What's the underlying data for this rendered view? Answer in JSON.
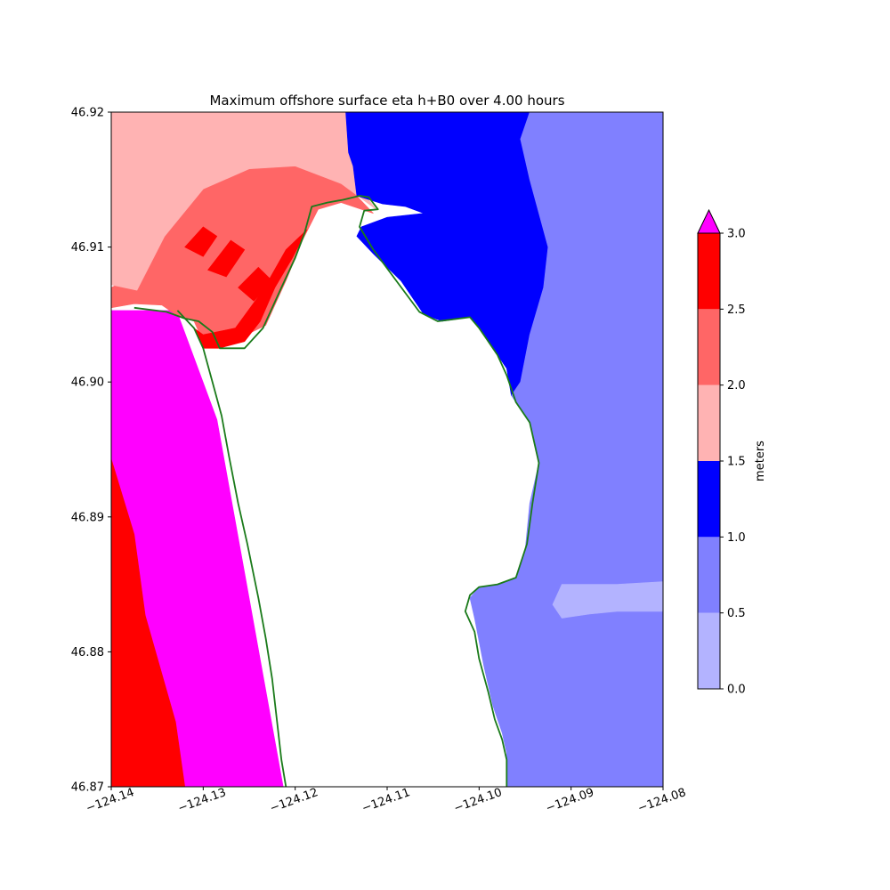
{
  "chart_data": {
    "type": "heatmap",
    "title": "Maximum offshore surface eta h+B0 over 4.00 hours",
    "xlabel": "",
    "ylabel": "",
    "xlim": [
      -124.14,
      -124.08
    ],
    "ylim": [
      46.87,
      46.92
    ],
    "x_ticks": [
      "−124.14",
      "−124.13",
      "−124.12",
      "−124.11",
      "−124.10",
      "−124.09",
      "−124.08"
    ],
    "x_tick_values": [
      -124.14,
      -124.13,
      -124.12,
      -124.11,
      -124.1,
      -124.09,
      -124.08
    ],
    "y_ticks": [
      "46.87",
      "46.88",
      "46.89",
      "46.90",
      "46.91",
      "46.92"
    ],
    "y_tick_values": [
      46.87,
      46.88,
      46.89,
      46.9,
      46.91,
      46.92
    ],
    "grid": false,
    "coastline_color": "#1a7a1a",
    "colorbar": {
      "label": "meters",
      "extend": "max",
      "over_color": "#ff00ff",
      "bounds": [
        0.0,
        0.5,
        1.0,
        1.5,
        2.0,
        2.5,
        3.0
      ],
      "tick_labels": [
        "0.0",
        "0.5",
        "1.0",
        "1.5",
        "2.0",
        "2.5",
        "3.0"
      ],
      "colors": [
        "#b3b3ff",
        "#8080ff",
        "#0000ff",
        "#ffb3b3",
        "#ff6666",
        "#ff0000"
      ]
    },
    "regions": [
      {
        "name": "over-3.0",
        "color": "#ff00ff",
        "polygon": [
          [
            -124.14,
            46.9053
          ],
          [
            -124.1329,
            46.9053
          ],
          [
            -124.1285,
            46.8972
          ],
          [
            -124.1213,
            46.87
          ],
          [
            -124.132,
            46.87
          ],
          [
            -124.133,
            46.8748
          ],
          [
            -124.1363,
            46.8827
          ],
          [
            -124.1375,
            46.8887
          ],
          [
            -124.14,
            46.8943
          ]
        ]
      },
      {
        "name": "2.5-3.0-south",
        "color": "#ff0000",
        "polygon": [
          [
            -124.14,
            46.8943
          ],
          [
            -124.1375,
            46.8887
          ],
          [
            -124.1363,
            46.8827
          ],
          [
            -124.133,
            46.8748
          ],
          [
            -124.132,
            46.87
          ],
          [
            -124.14,
            46.87
          ]
        ]
      },
      {
        "name": "2.0-2.5-north",
        "color": "#ff6666",
        "polygon": [
          [
            -124.1375,
            46.9058
          ],
          [
            -124.1345,
            46.9057
          ],
          [
            -124.133,
            46.905
          ],
          [
            -124.131,
            46.9045
          ],
          [
            -124.13,
            46.903
          ],
          [
            -124.1283,
            46.9025
          ],
          [
            -124.1232,
            46.9042
          ],
          [
            -124.121,
            46.9075
          ],
          [
            -124.1192,
            46.9105
          ],
          [
            -124.1175,
            46.9128
          ],
          [
            -124.115,
            46.9133
          ],
          [
            -124.1115,
            46.9125
          ],
          [
            -124.115,
            46.915
          ],
          [
            -124.12,
            46.9162
          ],
          [
            -124.125,
            46.916
          ],
          [
            -124.13,
            46.9145
          ],
          [
            -124.134,
            46.9115
          ],
          [
            -124.137,
            46.908
          ],
          [
            -124.14,
            46.907
          ],
          [
            -124.14,
            46.9055
          ]
        ]
      },
      {
        "name": "1.5-2.0-north",
        "color": "#ffb3b3",
        "polygon": [
          [
            -124.14,
            46.9072
          ],
          [
            -124.1372,
            46.9068
          ],
          [
            -124.1342,
            46.9108
          ],
          [
            -124.13,
            46.9143
          ],
          [
            -124.125,
            46.9158
          ],
          [
            -124.12,
            46.916
          ],
          [
            -124.115,
            46.9147
          ],
          [
            -124.1112,
            46.9128
          ],
          [
            -124.112,
            46.9135
          ],
          [
            -124.1133,
            46.9138
          ],
          [
            -124.1137,
            46.916
          ],
          [
            -124.1142,
            46.917
          ],
          [
            -124.1145,
            46.92
          ],
          [
            -124.14,
            46.92
          ]
        ]
      },
      {
        "name": "2.5-3.0-shore",
        "color": "#ff0000",
        "polygon": [
          [
            -124.131,
            46.904
          ],
          [
            -124.13,
            46.9025
          ],
          [
            -124.1283,
            46.9025
          ],
          [
            -124.1255,
            46.903
          ],
          [
            -124.1238,
            46.9045
          ],
          [
            -124.1222,
            46.907
          ],
          [
            -124.1203,
            46.9092
          ],
          [
            -124.1187,
            46.9113
          ],
          [
            -124.121,
            46.9098
          ],
          [
            -124.1235,
            46.9068
          ],
          [
            -124.1265,
            46.904
          ],
          [
            -124.13,
            46.9035
          ]
        ]
      },
      {
        "name": "2.5-3.0-spot-1",
        "color": "#ff0000",
        "polygon": [
          [
            -124.132,
            46.91
          ],
          [
            -124.13,
            46.9115
          ],
          [
            -124.1285,
            46.9108
          ],
          [
            -124.13,
            46.9093
          ]
        ]
      },
      {
        "name": "2.5-3.0-spot-2",
        "color": "#ff0000",
        "polygon": [
          [
            -124.1295,
            46.9083
          ],
          [
            -124.127,
            46.9105
          ],
          [
            -124.1255,
            46.9098
          ],
          [
            -124.1275,
            46.9078
          ]
        ]
      },
      {
        "name": "2.5-3.0-spot-3",
        "color": "#ff0000",
        "polygon": [
          [
            -124.1262,
            46.907
          ],
          [
            -124.124,
            46.9085
          ],
          [
            -124.1225,
            46.9075
          ],
          [
            -124.1245,
            46.906
          ]
        ]
      },
      {
        "name": "1.0-1.5-bay",
        "color": "#0000ff",
        "polygon": [
          [
            -124.1133,
            46.9138
          ],
          [
            -124.1137,
            46.916
          ],
          [
            -124.1142,
            46.917
          ],
          [
            -124.1145,
            46.92
          ],
          [
            -124.1108,
            46.92
          ],
          [
            -124.0945,
            46.92
          ],
          [
            -124.0955,
            46.918
          ],
          [
            -124.0945,
            46.915
          ],
          [
            -124.0935,
            46.9125
          ],
          [
            -124.0925,
            46.91
          ],
          [
            -124.093,
            46.907
          ],
          [
            -124.0945,
            46.9035
          ],
          [
            -124.0955,
            46.9
          ],
          [
            -124.0965,
            46.899
          ],
          [
            -124.097,
            46.901
          ],
          [
            -124.098,
            46.902
          ],
          [
            -124.099,
            46.903
          ],
          [
            -124.1,
            46.904
          ],
          [
            -124.101,
            46.9048
          ],
          [
            -124.104,
            46.9045
          ],
          [
            -124.106,
            46.905
          ],
          [
            -124.1085,
            46.9075
          ],
          [
            -124.1115,
            46.9095
          ],
          [
            -124.1133,
            46.9108
          ],
          [
            -124.1128,
            46.9115
          ],
          [
            -124.11,
            46.9122
          ],
          [
            -124.106,
            46.9125
          ],
          [
            -124.108,
            46.913
          ],
          [
            -124.1105,
            46.9132
          ]
        ]
      },
      {
        "name": "0.5-1.0-east",
        "color": "#8080ff",
        "polygon": [
          [
            -124.0945,
            46.92
          ],
          [
            -124.08,
            46.92
          ],
          [
            -124.08,
            46.87
          ],
          [
            -124.097,
            46.87
          ],
          [
            -124.097,
            46.8725
          ],
          [
            -124.0975,
            46.874
          ],
          [
            -124.0985,
            46.876
          ],
          [
            -124.0995,
            46.879
          ],
          [
            -124.1005,
            46.8825
          ],
          [
            -124.101,
            46.884
          ],
          [
            -124.1,
            46.8848
          ],
          [
            -124.098,
            46.885
          ],
          [
            -124.096,
            46.8855
          ],
          [
            -124.095,
            46.8875
          ],
          [
            -124.0945,
            46.891
          ],
          [
            -124.0935,
            46.894
          ],
          [
            -124.0945,
            46.897
          ],
          [
            -124.096,
            46.8985
          ],
          [
            -124.0965,
            46.899
          ],
          [
            -124.0955,
            46.9
          ],
          [
            -124.0945,
            46.9035
          ],
          [
            -124.093,
            46.907
          ],
          [
            -124.0925,
            46.91
          ],
          [
            -124.0935,
            46.9125
          ],
          [
            -124.0945,
            46.915
          ],
          [
            -124.0955,
            46.918
          ]
        ]
      },
      {
        "name": "0.0-0.5-band",
        "color": "#b3b3ff",
        "polygon": [
          [
            -124.092,
            46.8835
          ],
          [
            -124.091,
            46.885
          ],
          [
            -124.088,
            46.885
          ],
          [
            -124.085,
            46.885
          ],
          [
            -124.08,
            46.8852
          ],
          [
            -124.08,
            46.883
          ],
          [
            -124.085,
            46.883
          ],
          [
            -124.088,
            46.8828
          ],
          [
            -124.091,
            46.8825
          ]
        ]
      }
    ],
    "coastline": [
      [
        [
          -124.1375,
          46.9055
        ],
        [
          -124.134,
          46.9052
        ],
        [
          -124.132,
          46.9047
        ],
        [
          -124.1305,
          46.9045
        ],
        [
          -124.129,
          46.9037
        ],
        [
          -124.1282,
          46.9025
        ],
        [
          -124.1255,
          46.9025
        ],
        [
          -124.1235,
          46.904
        ],
        [
          -124.1215,
          46.907
        ],
        [
          -124.12,
          46.9092
        ],
        [
          -124.119,
          46.911
        ],
        [
          -124.1182,
          46.913
        ],
        [
          -124.1165,
          46.9133
        ],
        [
          -124.1148,
          46.9135
        ],
        [
          -124.113,
          46.9138
        ],
        [
          -124.112,
          46.9137
        ],
        [
          -124.111,
          46.9128
        ],
        [
          -124.1125,
          46.9127
        ],
        [
          -124.113,
          46.9115
        ],
        [
          -124.1115,
          46.9098
        ],
        [
          -124.109,
          46.9075
        ],
        [
          -124.1065,
          46.9052
        ],
        [
          -124.1045,
          46.9045
        ],
        [
          -124.101,
          46.9048
        ],
        [
          -124.1,
          46.904
        ],
        [
          -124.099,
          46.903
        ],
        [
          -124.098,
          46.902
        ],
        [
          -124.097,
          46.9005
        ],
        [
          -124.0965,
          46.8995
        ],
        [
          -124.096,
          46.8985
        ],
        [
          -124.0945,
          46.897
        ],
        [
          -124.0935,
          46.894
        ],
        [
          -124.0942,
          46.891
        ],
        [
          -124.0948,
          46.888
        ],
        [
          -124.096,
          46.8855
        ],
        [
          -124.098,
          46.885
        ],
        [
          -124.1,
          46.8848
        ],
        [
          -124.101,
          46.8842
        ],
        [
          -124.1015,
          46.883
        ],
        [
          -124.1005,
          46.8815
        ],
        [
          -124.1,
          46.8795
        ],
        [
          -124.099,
          46.877
        ],
        [
          -124.0983,
          46.875
        ],
        [
          -124.0975,
          46.8735
        ],
        [
          -124.097,
          46.872
        ],
        [
          -124.097,
          46.87
        ]
      ],
      [
        [
          -124.1328,
          46.9053
        ],
        [
          -124.131,
          46.904
        ],
        [
          -124.13,
          46.9025
        ],
        [
          -124.129,
          46.9
        ],
        [
          -124.128,
          46.8975
        ],
        [
          -124.1272,
          46.8945
        ],
        [
          -124.1262,
          46.891
        ],
        [
          -124.1252,
          46.888
        ],
        [
          -124.124,
          46.884
        ],
        [
          -124.1232,
          46.881
        ],
        [
          -124.1225,
          46.878
        ],
        [
          -124.122,
          46.875
        ],
        [
          -124.1215,
          46.872
        ],
        [
          -124.121,
          46.87
        ]
      ]
    ]
  }
}
